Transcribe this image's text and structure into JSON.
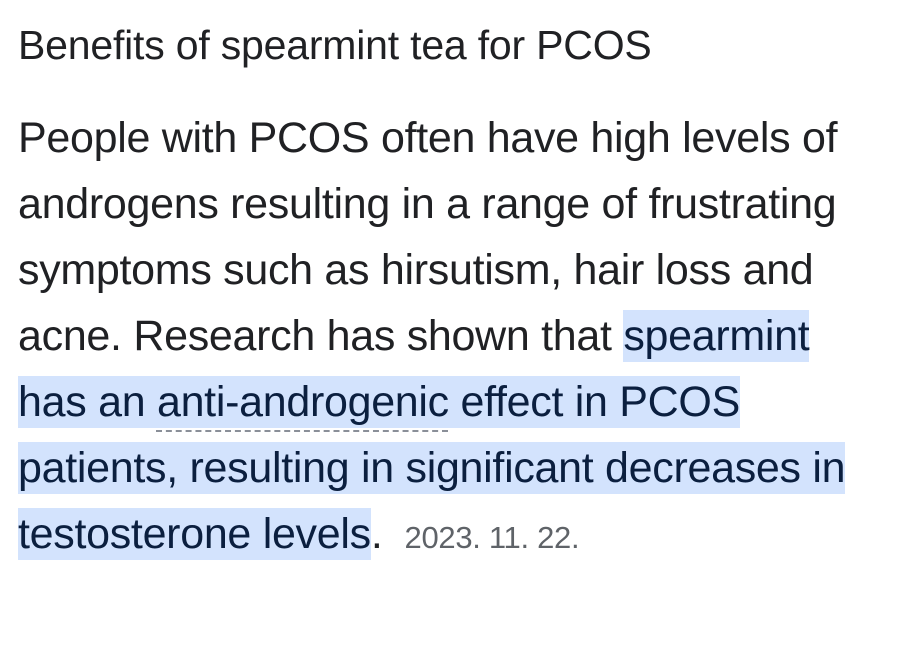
{
  "snippet": {
    "title": "Benefits of spearmint tea for PCOS",
    "text_before": "People with PCOS often have high levels of androgens resulting in a range of frustrating symptoms such as hirsutism, hair loss and acne. Research has shown that ",
    "highlight_part1": "spearmint has an ",
    "highlight_term": "anti-androgenic",
    "highlight_part2": " effect in PCOS patients, resulting in significant decreases in testosterone levels",
    "text_after": ".",
    "date": "2023. 11. 22.",
    "highlight_color": "#d3e3fd"
  }
}
